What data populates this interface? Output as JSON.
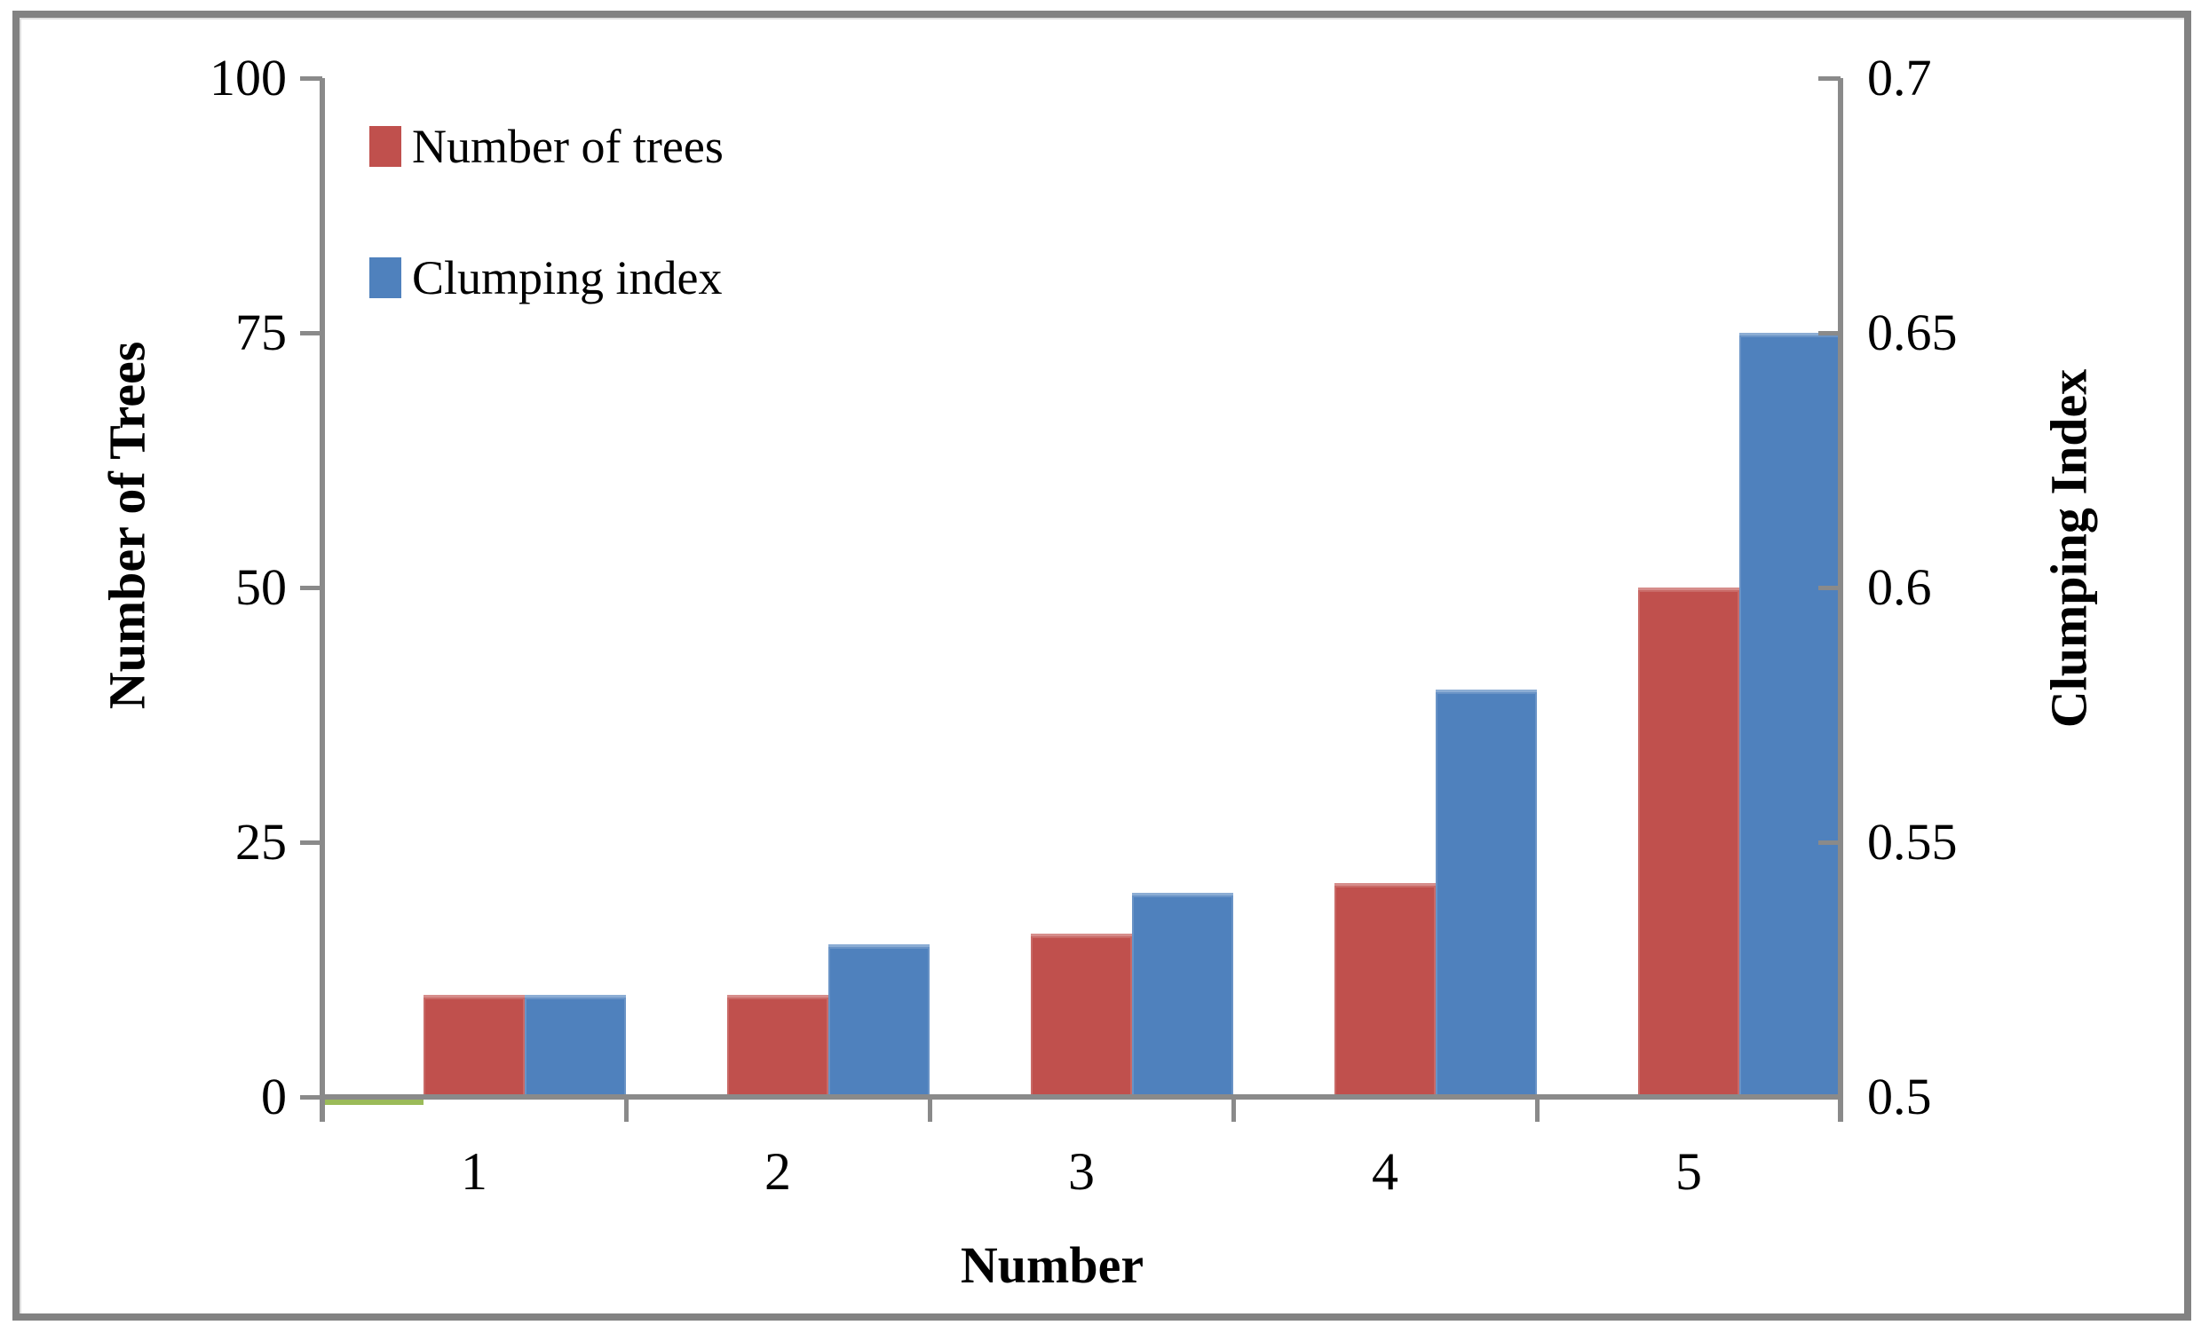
{
  "chart_data": {
    "type": "bar",
    "title": "",
    "categories": [
      "1",
      "2",
      "3",
      "4",
      "5"
    ],
    "series": [
      {
        "name": "Number of trees",
        "color": "#C0504D",
        "axis": "left",
        "values": [
          10,
          10,
          16,
          21,
          50
        ]
      },
      {
        "name": "Clumping index",
        "color": "#4F81BD",
        "axis": "right",
        "values": [
          0.52,
          0.53,
          0.54,
          0.58,
          0.65
        ]
      }
    ],
    "unlabeled_green_series": {
      "color": "#9BBB59",
      "values": [
        0.3,
        0,
        0,
        0,
        0
      ],
      "note": "thin green sliver visible at the axis baseline under category 1 only"
    },
    "left_axis": {
      "title": "Number of Trees",
      "range": [
        0,
        100
      ],
      "ticks": [
        "0",
        "25",
        "50",
        "75",
        "100"
      ]
    },
    "right_axis": {
      "title": "Clumping Index",
      "range": [
        0.5,
        0.7
      ],
      "ticks": [
        "0.5",
        "0.55",
        "0.6",
        "0.65",
        "0.7"
      ]
    },
    "x_axis": {
      "title": "Number",
      "tick_labels": [
        "1",
        "2",
        "3",
        "4",
        "5"
      ]
    },
    "legend": {
      "position": "top-left-inside",
      "entries": [
        {
          "label": "Number of trees",
          "color": "#C0504D"
        },
        {
          "label": "Clumping index",
          "color": "#4F81BD"
        }
      ]
    },
    "grid": false,
    "axis_line_color": "#8a8a8a",
    "text_color": "#000000"
  },
  "frame": {
    "border_color": "#828282",
    "background": "#ffffff"
  }
}
